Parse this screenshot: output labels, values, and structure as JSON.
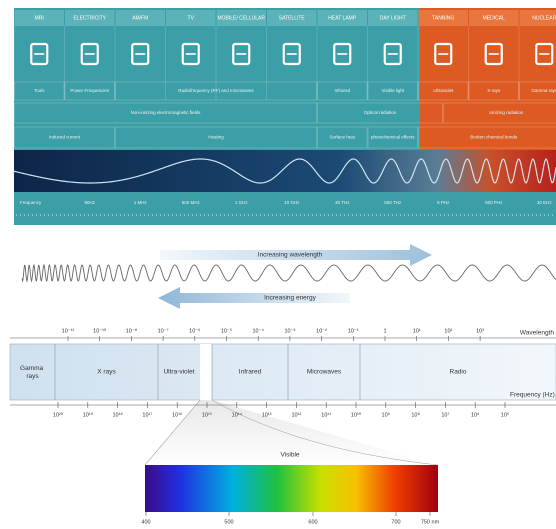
{
  "top_panel": {
    "columns": [
      "MRI",
      "ELECTRICITY",
      "AM/FM",
      "TV",
      "MOBILE/ CELLULAR",
      "SATELLITE",
      "HEAT LAMP",
      "DAY LIGHT",
      "TANNING",
      "MEDICAL",
      "NUCLEAR"
    ],
    "sources": [
      "Tools",
      "Power Frequencies",
      "Radiofrequency (RF) and microwaves",
      "Infrared",
      "Visible light",
      "Ultraviolet",
      "X-rays",
      "Gamma rays"
    ],
    "radiation": [
      "Non-ionizing electromagnetic fields",
      "Optical radiation",
      "Ionizing radiation"
    ],
    "effects": [
      "Induced current",
      "Heating",
      "Surface heat",
      "photochemical effects",
      "Broken chemical bonds"
    ],
    "frequencies": [
      "Frequency",
      "50Hz",
      "1 MHz",
      "500 MHz",
      "1 GHz",
      "10 GHz",
      "30 THz",
      "500 THz",
      "5 PHz",
      "500 PHz",
      "30 EHz"
    ]
  },
  "spectrum": {
    "increasing_wavelength": "Increasing wavelength",
    "increasing_energy": "Increasing energy",
    "wavelength_label": "Wavelength",
    "frequency_label": "Frequency (Hz)",
    "wavelength_ticks": [
      "10⁻¹²",
      "10⁻¹⁰",
      "10⁻⁸",
      "10⁻⁷",
      "10⁻⁶",
      "10⁻⁵",
      "10⁻⁴",
      "10⁻³",
      "10⁻²",
      "10⁻¹",
      "1",
      "10¹",
      "10²",
      "10³"
    ],
    "bands": [
      "Gamma rays",
      "X rays",
      "Ultra-violet",
      "Infrared",
      "Microwaves",
      "Radio"
    ],
    "frequency_ticks": [
      "10²⁰",
      "10¹⁹",
      "10¹⁸",
      "10¹⁷",
      "10¹⁶",
      "10¹⁵",
      "10¹⁴",
      "10¹³",
      "10¹²",
      "10¹¹",
      "10¹⁰",
      "10⁹",
      "10⁸",
      "10⁷",
      "10⁶",
      "10⁵"
    ],
    "visible": "Visible",
    "visible_ticks": [
      "400",
      "500",
      "600",
      "700",
      "750 nm"
    ]
  }
}
